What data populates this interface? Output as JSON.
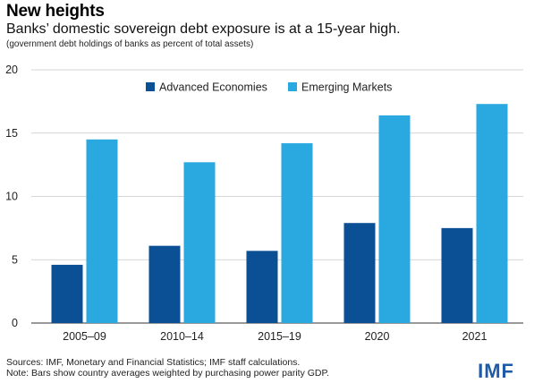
{
  "header": {
    "title": "New heights",
    "subtitle": "Banks’ domestic sovereign debt exposure is at a 15-year high.",
    "note": "(government debt holdings of banks as percent of total assets)"
  },
  "footer": {
    "sources": "Sources: IMF, Monetary and Financial Statistics; IMF staff calculations.",
    "note": "Note: Bars show country averages weighted by purchasing power parity GDP."
  },
  "logo": "IMF",
  "colors": {
    "advanced": "#0b4f94",
    "emerging": "#2aa8e0",
    "grid": "#c8c8c8",
    "axis": "#333333"
  },
  "chart_data": {
    "type": "bar",
    "categories": [
      "2005–09",
      "2010–14",
      "2015–19",
      "2020",
      "2021"
    ],
    "series": [
      {
        "name": "Advanced Economies",
        "values": [
          4.6,
          6.1,
          5.7,
          7.9,
          7.5
        ]
      },
      {
        "name": "Emerging Markets",
        "values": [
          14.5,
          12.7,
          14.2,
          16.4,
          17.3
        ]
      }
    ],
    "ylim": [
      0,
      20
    ],
    "yticks": [
      0,
      5,
      10,
      15,
      20
    ],
    "grid": true,
    "legend": "top-center"
  }
}
